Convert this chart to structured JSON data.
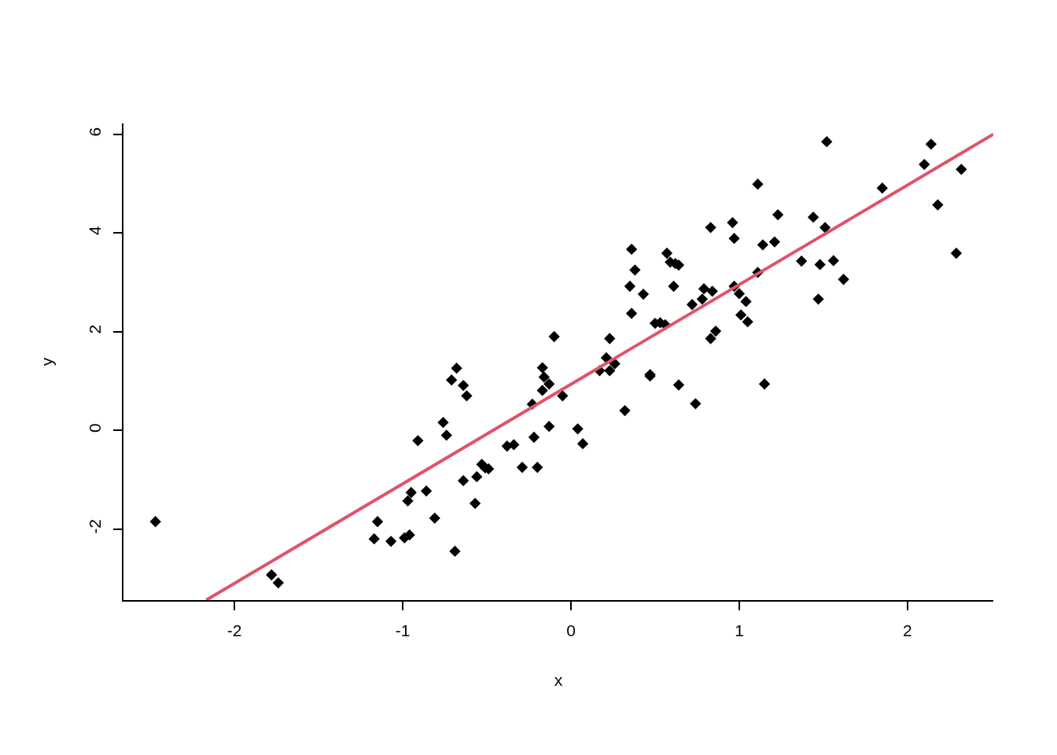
{
  "chart_data": {
    "type": "scatter",
    "xlabel": "x",
    "ylabel": "y",
    "xlim": [
      -2.66,
      2.51
    ],
    "ylim": [
      -3.44,
      6.22
    ],
    "xticks": [
      -2,
      -1,
      0,
      1,
      2
    ],
    "yticks": [
      -2,
      0,
      2,
      4,
      6
    ],
    "marker": "diamond",
    "series": [
      {
        "color": "#000000",
        "x": [
          -2.47,
          -1.78,
          -1.74,
          -1.17,
          -1.15,
          -1.07,
          -0.99,
          -0.96,
          -0.97,
          -0.95,
          -0.91,
          -0.86,
          -0.81,
          -0.76,
          -0.74,
          -0.71,
          -0.68,
          -0.69,
          -0.64,
          -0.62,
          -0.64,
          -0.57,
          -0.56,
          -0.53,
          -0.51,
          -0.49,
          -0.38,
          -0.34,
          -0.29,
          -0.23,
          -0.22,
          -0.2,
          -0.17,
          -0.16,
          -0.17,
          -0.13,
          -0.13,
          -0.1,
          -0.05,
          0.04,
          0.07,
          0.17,
          0.21,
          0.23,
          0.23,
          0.26,
          0.32,
          0.35,
          0.36,
          0.36,
          0.38,
          0.43,
          0.47,
          0.47,
          0.5,
          0.53,
          0.56,
          0.57,
          0.59,
          0.62,
          0.61,
          0.64,
          0.64,
          0.72,
          0.74,
          0.78,
          0.79,
          0.83,
          0.83,
          0.84,
          0.86,
          0.96,
          0.97,
          0.97,
          1.0,
          1.01,
          1.04,
          1.05,
          1.11,
          1.11,
          1.14,
          1.15,
          1.21,
          1.23,
          1.37,
          1.44,
          1.47,
          1.48,
          1.51,
          1.52,
          1.56,
          1.62,
          1.85,
          2.1,
          2.14,
          2.18,
          2.29,
          2.32
        ],
        "values": [
          -1.85,
          -2.93,
          -3.09,
          -2.2,
          -1.85,
          -2.25,
          -2.18,
          -2.12,
          -1.43,
          -1.26,
          -0.21,
          -1.23,
          -1.78,
          0.16,
          -0.1,
          1.02,
          1.26,
          -2.45,
          0.91,
          0.7,
          -1.02,
          -1.48,
          -0.94,
          -0.69,
          -0.76,
          -0.78,
          -0.32,
          -0.29,
          -0.75,
          0.53,
          -0.14,
          -0.75,
          1.27,
          1.08,
          0.81,
          0.94,
          0.08,
          1.9,
          0.7,
          0.03,
          -0.27,
          1.21,
          1.47,
          1.86,
          1.21,
          1.35,
          0.4,
          2.92,
          3.67,
          2.37,
          3.25,
          2.76,
          1.13,
          1.1,
          2.17,
          2.18,
          2.14,
          3.59,
          3.41,
          3.38,
          2.92,
          3.35,
          0.92,
          2.55,
          0.54,
          2.66,
          2.87,
          4.11,
          1.86,
          2.82,
          2.01,
          4.21,
          3.89,
          2.92,
          2.77,
          2.34,
          2.61,
          2.2,
          4.99,
          3.2,
          3.76,
          0.94,
          3.82,
          4.37,
          3.43,
          4.32,
          2.66,
          3.36,
          4.11,
          5.85,
          3.44,
          3.06,
          4.91,
          5.39,
          5.8,
          4.57,
          3.59,
          5.29
        ]
      },
      {
        "type": "line",
        "color": "#df536b",
        "marker": "none",
        "line_style": "solid",
        "x": [
          -2.168,
          2.51
        ],
        "values": [
          -3.44,
          6.0
        ]
      }
    ]
  }
}
